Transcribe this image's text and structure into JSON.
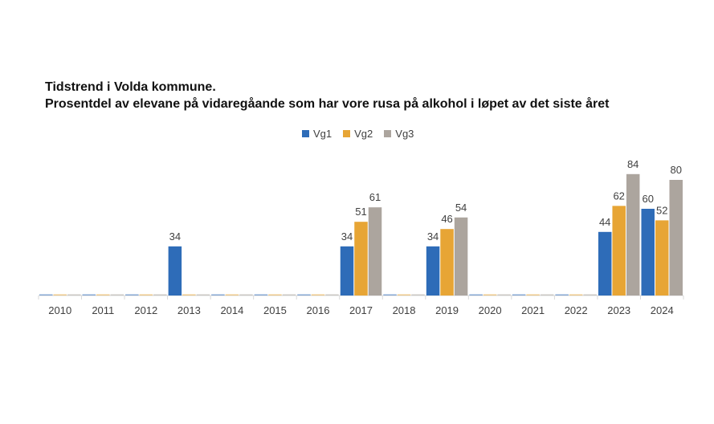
{
  "chart_data": {
    "type": "bar",
    "title": "Tidstrend i Volda kommune.",
    "subtitle": "Prosentdel av elevane på vidaregåande som har vore rusa på alkohol i løpet av det siste året",
    "categories": [
      "2010",
      "2011",
      "2012",
      "2013",
      "2014",
      "2015",
      "2016",
      "2017",
      "2018",
      "2019",
      "2020",
      "2021",
      "2022",
      "2023",
      "2024"
    ],
    "series": [
      {
        "name": "Vg1",
        "color": "#2e6cb8",
        "values": [
          null,
          null,
          null,
          34,
          null,
          null,
          null,
          34,
          null,
          34,
          null,
          null,
          null,
          44,
          60
        ]
      },
      {
        "name": "Vg2",
        "color": "#e7a535",
        "values": [
          null,
          null,
          null,
          null,
          null,
          null,
          null,
          51,
          null,
          46,
          null,
          null,
          null,
          62,
          52
        ]
      },
      {
        "name": "Vg3",
        "color": "#aca59e",
        "values": [
          null,
          null,
          null,
          null,
          null,
          null,
          null,
          61,
          null,
          54,
          null,
          null,
          null,
          84,
          80
        ]
      }
    ],
    "ylim": [
      0,
      100
    ],
    "grid": false,
    "legend": "top-center",
    "xlabel": "",
    "ylabel": ""
  }
}
